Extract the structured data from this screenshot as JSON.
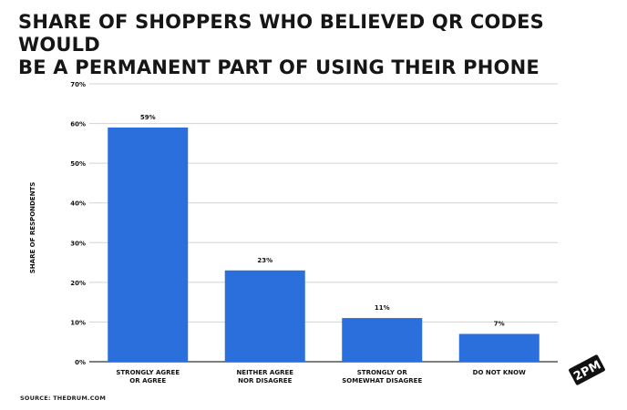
{
  "title_lines": [
    "SHARE OF SHOPPERS WHO BELIEVED QR CODES WOULD",
    "BE A PERMANENT PART OF USING THEIR PHONE"
  ],
  "source": "SOURCE: THEDRUM.COM",
  "brand": "2PM",
  "colors": {
    "bar": "#2a6fdb",
    "grid": "#d3d3d3",
    "text": "#111111",
    "baseline": "#333333"
  },
  "chart_data": {
    "type": "bar",
    "title": "SHARE OF SHOPPERS WHO BELIEVED QR CODES WOULD BE A PERMANENT PART OF USING THEIR PHONE",
    "categories": [
      [
        "STRONGLY AGREE",
        "OR AGREE"
      ],
      [
        "NEITHER AGREE",
        "NOR DISAGREE"
      ],
      [
        "STRONGLY OR",
        "SOMEWHAT DISAGREE"
      ],
      [
        "DO NOT KNOW"
      ]
    ],
    "values": [
      59,
      23,
      11,
      7
    ],
    "data_labels": [
      "59%",
      "23%",
      "11%",
      "7%"
    ],
    "ylabel": "SHARE OF RESPONDENTS",
    "xlabel": "",
    "ylim": [
      0,
      70
    ],
    "yticks": [
      0,
      10,
      20,
      30,
      40,
      50,
      60,
      70
    ],
    "ytick_labels": [
      "0%",
      "10%",
      "20%",
      "30%",
      "40%",
      "50%",
      "60%",
      "70%"
    ],
    "grid": true,
    "legend": "none"
  }
}
